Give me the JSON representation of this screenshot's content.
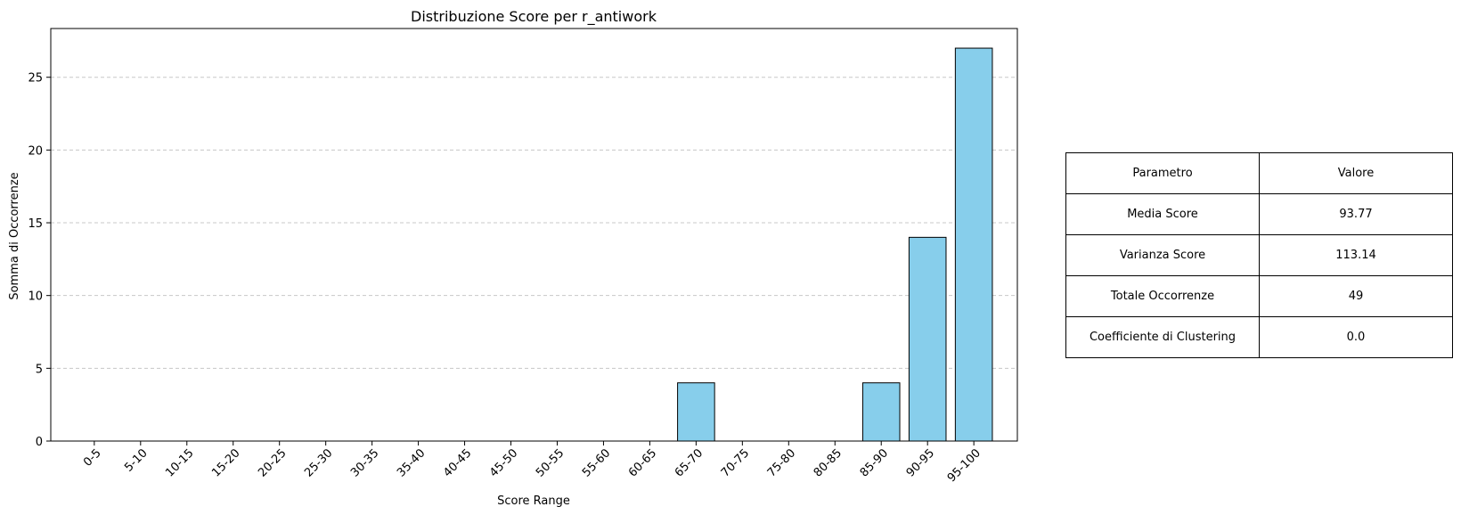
{
  "chart_data": {
    "type": "bar",
    "title": "Distribuzione Score per r_antiwork",
    "xlabel": "Score Range",
    "ylabel": "Somma di Occorrenze",
    "categories": [
      "0-5",
      "5-10",
      "10-15",
      "15-20",
      "20-25",
      "25-30",
      "30-35",
      "35-40",
      "40-45",
      "45-50",
      "50-55",
      "55-60",
      "60-65",
      "65-70",
      "70-75",
      "75-80",
      "80-85",
      "85-90",
      "90-95",
      "95-100"
    ],
    "values": [
      0,
      0,
      0,
      0,
      0,
      0,
      0,
      0,
      0,
      0,
      0,
      0,
      0,
      4,
      0,
      0,
      0,
      4,
      14,
      27
    ],
    "ylim": [
      0,
      28.35
    ],
    "yticks": [
      0,
      5,
      10,
      15,
      20,
      25
    ],
    "grid": "y-dashed",
    "bar_color": "#87CEEB",
    "edge_color": "#000000",
    "grid_color": "#c8c8c8"
  },
  "table": {
    "rows": [
      [
        "Parametro",
        "Valore"
      ],
      [
        "Media Score",
        "93.77"
      ],
      [
        "Varianza Score",
        "113.14"
      ],
      [
        "Totale Occorrenze",
        "49"
      ],
      [
        "Coefficiente di Clustering",
        "0.0"
      ]
    ]
  }
}
